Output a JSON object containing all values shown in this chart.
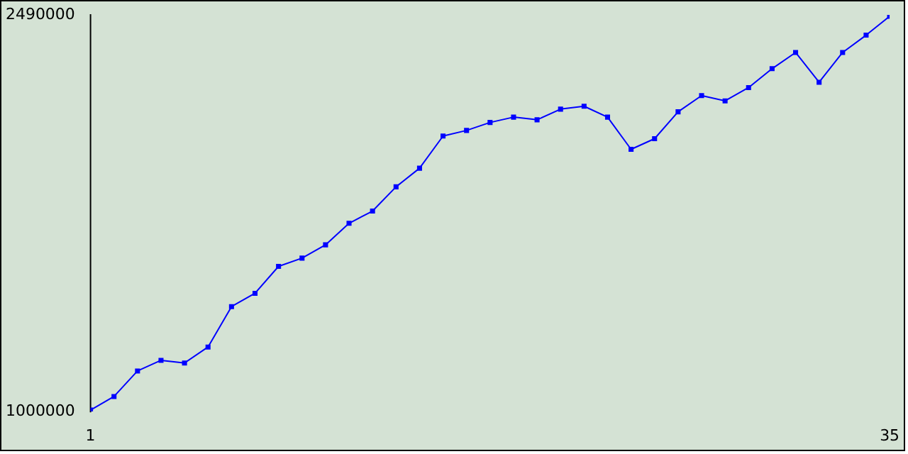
{
  "chart_data": {
    "type": "line",
    "x": [
      1,
      2,
      3,
      4,
      5,
      6,
      7,
      8,
      9,
      10,
      11,
      12,
      13,
      14,
      15,
      16,
      17,
      18,
      19,
      20,
      21,
      22,
      23,
      24,
      25,
      26,
      27,
      28,
      29,
      30,
      31,
      32,
      33,
      34,
      35
    ],
    "series": [
      {
        "color": "#0000ff",
        "values": [
          1005000,
          1056000,
          1152000,
          1192000,
          1182000,
          1242000,
          1394000,
          1444000,
          1545000,
          1576000,
          1626000,
          1707000,
          1753000,
          1844000,
          1914000,
          2035000,
          2056000,
          2086000,
          2106000,
          2096000,
          2136000,
          2147000,
          2106000,
          1985000,
          2025000,
          2126000,
          2187000,
          2167000,
          2217000,
          2288000,
          2349000,
          2237000,
          2349000,
          2414000,
          2485000
        ]
      }
    ],
    "xlim": [
      1,
      35
    ],
    "xticks": [
      1,
      35
    ],
    "ylim": [
      1000000,
      2490000
    ],
    "yticks": [
      1000000,
      2490000
    ],
    "grid": false,
    "legend": false,
    "marker": "square",
    "line_style": "solid"
  }
}
